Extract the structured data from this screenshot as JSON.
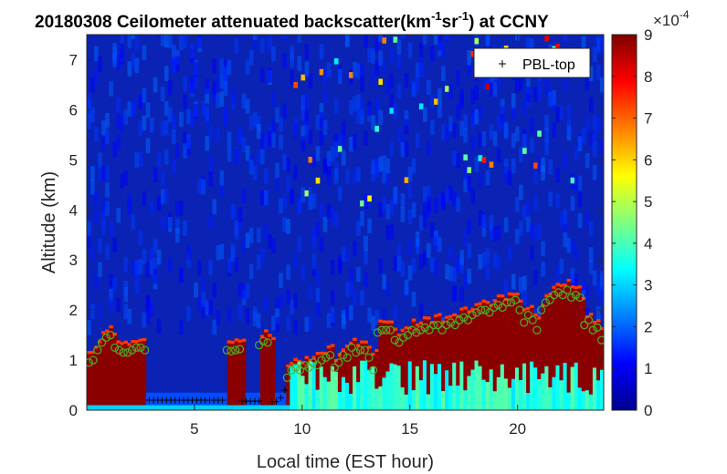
{
  "chart_data": {
    "type": "heatmap",
    "title": {
      "main": "20180308 Ceilometer attenuated backscatter(km",
      "sup1": "-1",
      "mid": "sr",
      "sup2": "-1",
      "end": ") at CCNY"
    },
    "xlabel": "Local time (EST hour)",
    "ylabel": "Altitude (km)",
    "xlim": [
      0,
      24
    ],
    "ylim": [
      0,
      7.5
    ],
    "xticks": [
      "5",
      "10",
      "15",
      "20"
    ],
    "yticks": [
      "0",
      "1",
      "2",
      "3",
      "4",
      "5",
      "6",
      "7"
    ],
    "colorbar": {
      "clim": [
        0,
        9
      ],
      "ticks": [
        "0",
        "1",
        "2",
        "3",
        "4",
        "5",
        "6",
        "7",
        "8",
        "9"
      ],
      "exponent_base": "×10",
      "exponent_power": "-4",
      "colormap": "jet"
    },
    "legend": {
      "position": "top-right",
      "entries": [
        {
          "marker": "+",
          "label": "PBL-top"
        }
      ]
    },
    "series": [
      {
        "name": "PBL-top",
        "marker": "plus",
        "color": "#000000",
        "x": [
          2.9,
          3.1,
          3.3,
          3.5,
          3.7,
          3.9,
          4.1,
          4.3,
          4.5,
          4.7,
          4.9,
          5.1,
          5.3,
          5.5,
          5.7,
          5.9,
          6.1,
          6.3,
          7.2,
          7.4,
          7.6,
          7.8,
          8.0,
          8.6,
          8.8,
          9.0,
          9.2
        ],
        "y": [
          0.2,
          0.2,
          0.2,
          0.2,
          0.2,
          0.2,
          0.2,
          0.2,
          0.2,
          0.2,
          0.2,
          0.2,
          0.2,
          0.2,
          0.2,
          0.2,
          0.2,
          0.2,
          0.18,
          0.18,
          0.18,
          0.18,
          0.18,
          0.17,
          0.17,
          0.25,
          0.4
        ]
      },
      {
        "marker": "circle",
        "color": "#4caf2a",
        "x": [
          0.1,
          0.3,
          0.5,
          0.7,
          0.9,
          1.1,
          1.3,
          1.5,
          1.7,
          1.9,
          2.1,
          2.3,
          2.5,
          2.7,
          6.5,
          6.7,
          6.9,
          7.1,
          8.0,
          8.2,
          8.4,
          9.3,
          9.5,
          9.7,
          9.9,
          10.1,
          10.3,
          10.5,
          10.7,
          10.9,
          11.1,
          11.3,
          11.5,
          11.7,
          11.9,
          12.1,
          12.3,
          12.5,
          12.7,
          12.9,
          13.1,
          13.3,
          13.5,
          13.7,
          13.9,
          14.1,
          14.3,
          14.5,
          14.7,
          14.9,
          15.1,
          15.3,
          15.5,
          15.7,
          15.9,
          16.1,
          16.3,
          16.5,
          16.7,
          16.9,
          17.1,
          17.3,
          17.5,
          17.7,
          17.9,
          18.1,
          18.3,
          18.5,
          18.7,
          18.9,
          19.1,
          19.3,
          19.5,
          19.7,
          19.9,
          20.1,
          20.3,
          20.5,
          20.7,
          20.9,
          21.1,
          21.3,
          21.5,
          21.7,
          21.9,
          22.1,
          22.3,
          22.5,
          22.7,
          22.9,
          23.1,
          23.3,
          23.5,
          23.7,
          23.9
        ],
        "y": [
          0.95,
          1.0,
          1.2,
          1.35,
          1.45,
          1.5,
          1.25,
          1.2,
          1.15,
          1.15,
          1.2,
          1.25,
          1.25,
          1.2,
          1.2,
          1.18,
          1.2,
          1.22,
          1.3,
          1.38,
          1.35,
          0.65,
          0.8,
          0.85,
          0.8,
          0.9,
          0.85,
          0.95,
          0.9,
          1.0,
          1.05,
          1.1,
          0.85,
          0.95,
          1.1,
          1.05,
          1.25,
          1.15,
          1.2,
          1.2,
          1.05,
          0.8,
          1.55,
          1.6,
          1.6,
          1.6,
          1.4,
          1.35,
          1.45,
          1.5,
          1.6,
          1.55,
          1.6,
          1.65,
          1.6,
          1.7,
          1.7,
          1.6,
          1.7,
          1.75,
          1.7,
          1.8,
          1.85,
          1.8,
          1.9,
          1.95,
          2.0,
          2.0,
          1.95,
          2.05,
          2.1,
          2.05,
          2.15,
          2.15,
          2.2,
          2.0,
          1.75,
          1.9,
          1.8,
          1.6,
          2.0,
          2.15,
          2.2,
          2.3,
          2.35,
          2.3,
          2.4,
          2.25,
          2.3,
          2.25,
          1.7,
          1.8,
          1.6,
          1.65,
          1.4
        ]
      }
    ]
  }
}
